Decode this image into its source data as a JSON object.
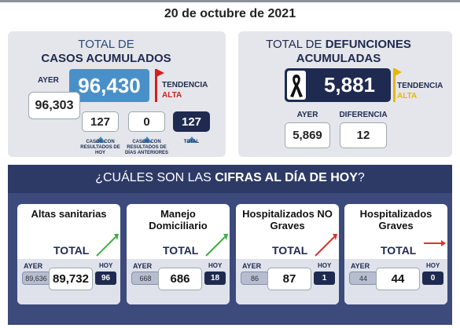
{
  "date": "20 de octubre de 2021",
  "cases": {
    "title_line1": "TOTAL DE",
    "title_line2": "CASOS ACUMULADOS",
    "total": "96,430",
    "yesterday_label": "AYER",
    "yesterday": "96,303",
    "trend_label": "TENDENCIA",
    "trend": "ALTA",
    "breakdown": [
      {
        "value": "127",
        "label": "CASOS CON RESULTADOS DE HOY"
      },
      {
        "value": "0",
        "label": "CASOS CON RESULTADOS DE DÍAS ANTERIORES"
      },
      {
        "value": "127",
        "label": "TOTAL"
      }
    ]
  },
  "deaths": {
    "title_prefix": "TOTAL DE ",
    "title_bold": "DEFUNCIONES",
    "title_line2": "ACUMULADAS",
    "total": "5,881",
    "trend_label": "TENDENCIA",
    "trend": "ALTA",
    "yesterday_label": "AYER",
    "yesterday": "5,869",
    "difference_label": "DIFERENCIA",
    "difference": "12"
  },
  "question": {
    "prefix": "¿CUÁLES SON LAS ",
    "bold": "CIFRAS AL DÍA DE HOY",
    "suffix": "?"
  },
  "cards": [
    {
      "title": "Altas sanitarias",
      "total_label": "TOTAL",
      "yesterday_label": "AYER",
      "yesterday": "89,636",
      "total": "89,732",
      "today_label": "HOY",
      "today": "96"
    },
    {
      "title": "Manejo Domiciliario",
      "total_label": "TOTAL",
      "yesterday_label": "AYER",
      "yesterday": "668",
      "total": "686",
      "today_label": "HOY",
      "today": "18"
    },
    {
      "title": "Hospitalizados NO Graves",
      "total_label": "TOTAL",
      "yesterday_label": "AYER",
      "yesterday": "86",
      "total": "87",
      "today_label": "HOY",
      "today": "1"
    },
    {
      "title": "Hospitalizados Graves",
      "total_label": "TOTAL",
      "yesterday_label": "AYER",
      "yesterday": "44",
      "total": "44",
      "today_label": "HOY",
      "today": "0"
    }
  ]
}
